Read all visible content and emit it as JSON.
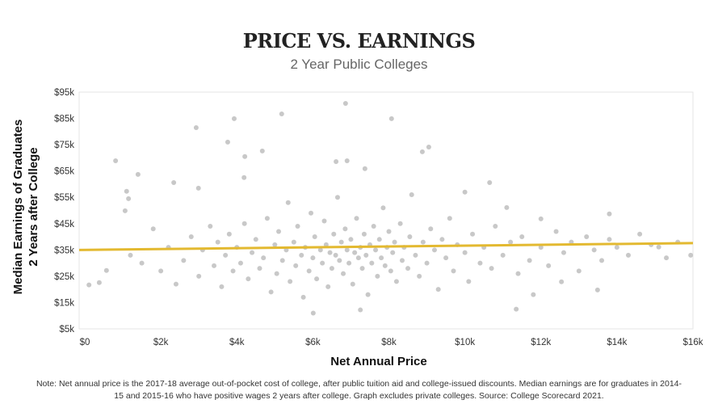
{
  "chart_data": {
    "type": "scatter",
    "title": "PRICE VS. EARNINGS",
    "subtitle": "2 Year Public Colleges",
    "xlabel": "Net Annual Price",
    "ylabel_lines": [
      "Median Earnings of Graduates",
      "2 Years after College"
    ],
    "xlim": [
      0,
      16
    ],
    "ylim": [
      5,
      95
    ],
    "x_ticks": [
      "$0",
      "$2k",
      "$4k",
      "$6k",
      "$8k",
      "$10k",
      "$12k",
      "$14k",
      "$16k"
    ],
    "y_ticks": [
      "$5k",
      "$15k",
      "$25k",
      "$35k",
      "$45k",
      "$55k",
      "$65k",
      "$75k",
      "$85k",
      "$95k"
    ],
    "grid": false,
    "point_color": "#c8c8c8",
    "trend_color": "#e3b930",
    "trendline": {
      "x": [
        0,
        16
      ],
      "y": [
        35.0,
        37.6
      ]
    },
    "points_units": "[net price $k, earnings $k]",
    "points": [
      [
        2.93,
        81.5
      ],
      [
        3.93,
        84.9
      ],
      [
        5.18,
        86.7
      ],
      [
        6.86,
        90.7
      ],
      [
        8.07,
        84.9
      ],
      [
        0.81,
        68.9
      ],
      [
        1.4,
        63.7
      ],
      [
        3.76,
        76.0
      ],
      [
        4.21,
        70.5
      ],
      [
        4.67,
        72.6
      ],
      [
        7.37,
        65.9
      ],
      [
        9.05,
        74.1
      ],
      [
        8.88,
        72.3
      ],
      [
        10.65,
        60.6
      ],
      [
        6.61,
        68.6
      ],
      [
        6.9,
        68.9
      ],
      [
        4.19,
        62.5
      ],
      [
        2.34,
        60.6
      ],
      [
        2.99,
        58.5
      ],
      [
        1.1,
        57.3
      ],
      [
        1.15,
        54.5
      ],
      [
        1.06,
        49.9
      ],
      [
        7.25,
        12.2
      ],
      [
        11.35,
        12.5
      ],
      [
        6.01,
        11.0
      ],
      [
        13.49,
        19.8
      ],
      [
        12.54,
        22.9
      ],
      [
        0.11,
        21.7
      ],
      [
        0.38,
        22.6
      ],
      [
        0.57,
        27.2
      ],
      [
        15.94,
        33.0
      ],
      [
        15.1,
        36.1
      ],
      [
        13.8,
        48.7
      ],
      [
        12.0,
        46.8
      ],
      [
        11.1,
        51.1
      ],
      [
        10.0,
        57.0
      ],
      [
        1.2,
        33
      ],
      [
        1.5,
        30
      ],
      [
        1.8,
        43
      ],
      [
        2.0,
        27
      ],
      [
        2.2,
        36
      ],
      [
        2.4,
        22
      ],
      [
        2.6,
        31
      ],
      [
        2.8,
        40
      ],
      [
        3.0,
        25
      ],
      [
        3.1,
        35
      ],
      [
        3.3,
        44
      ],
      [
        3.4,
        29
      ],
      [
        3.5,
        38
      ],
      [
        3.6,
        21
      ],
      [
        3.7,
        33
      ],
      [
        3.8,
        41
      ],
      [
        3.9,
        27
      ],
      [
        4.0,
        36
      ],
      [
        4.1,
        30
      ],
      [
        4.2,
        45
      ],
      [
        4.3,
        24
      ],
      [
        4.4,
        34
      ],
      [
        4.5,
        39
      ],
      [
        4.6,
        28
      ],
      [
        4.7,
        32
      ],
      [
        4.8,
        47
      ],
      [
        4.9,
        19
      ],
      [
        5.0,
        37
      ],
      [
        5.05,
        26
      ],
      [
        5.1,
        42
      ],
      [
        5.2,
        31
      ],
      [
        5.3,
        35
      ],
      [
        5.35,
        53
      ],
      [
        5.4,
        23
      ],
      [
        5.5,
        38
      ],
      [
        5.55,
        29
      ],
      [
        5.6,
        44
      ],
      [
        5.7,
        33
      ],
      [
        5.75,
        17
      ],
      [
        5.8,
        36
      ],
      [
        5.9,
        27
      ],
      [
        5.95,
        49
      ],
      [
        6.0,
        32
      ],
      [
        6.05,
        40
      ],
      [
        6.1,
        24
      ],
      [
        6.2,
        35
      ],
      [
        6.25,
        30
      ],
      [
        6.3,
        46
      ],
      [
        6.35,
        37
      ],
      [
        6.4,
        21
      ],
      [
        6.45,
        34
      ],
      [
        6.5,
        28
      ],
      [
        6.55,
        41
      ],
      [
        6.6,
        33
      ],
      [
        6.65,
        55
      ],
      [
        6.7,
        31
      ],
      [
        6.75,
        38
      ],
      [
        6.8,
        26
      ],
      [
        6.85,
        43
      ],
      [
        6.9,
        35
      ],
      [
        6.95,
        30
      ],
      [
        7.0,
        39
      ],
      [
        7.05,
        22
      ],
      [
        7.1,
        34
      ],
      [
        7.15,
        47
      ],
      [
        7.2,
        32
      ],
      [
        7.25,
        36
      ],
      [
        7.3,
        28
      ],
      [
        7.35,
        41
      ],
      [
        7.4,
        33
      ],
      [
        7.45,
        18
      ],
      [
        7.5,
        37
      ],
      [
        7.55,
        30
      ],
      [
        7.6,
        44
      ],
      [
        7.65,
        35
      ],
      [
        7.7,
        25
      ],
      [
        7.75,
        39
      ],
      [
        7.8,
        32
      ],
      [
        7.85,
        51
      ],
      [
        7.9,
        29
      ],
      [
        7.95,
        36
      ],
      [
        8.0,
        42
      ],
      [
        8.05,
        27
      ],
      [
        8.1,
        34
      ],
      [
        8.15,
        38
      ],
      [
        8.2,
        23
      ],
      [
        8.3,
        45
      ],
      [
        8.35,
        31
      ],
      [
        8.4,
        36
      ],
      [
        8.5,
        28
      ],
      [
        8.55,
        40
      ],
      [
        8.6,
        56
      ],
      [
        8.7,
        33
      ],
      [
        8.8,
        25
      ],
      [
        8.9,
        38
      ],
      [
        9.0,
        30
      ],
      [
        9.1,
        43
      ],
      [
        9.2,
        35
      ],
      [
        9.3,
        20
      ],
      [
        9.4,
        39
      ],
      [
        9.5,
        32
      ],
      [
        9.6,
        47
      ],
      [
        9.7,
        27
      ],
      [
        9.8,
        37
      ],
      [
        10.0,
        34
      ],
      [
        10.1,
        23
      ],
      [
        10.2,
        41
      ],
      [
        10.4,
        30
      ],
      [
        10.5,
        36
      ],
      [
        10.7,
        28
      ],
      [
        10.8,
        44
      ],
      [
        11.0,
        33
      ],
      [
        11.2,
        38
      ],
      [
        11.4,
        26
      ],
      [
        11.5,
        40
      ],
      [
        11.7,
        31
      ],
      [
        11.8,
        18
      ],
      [
        12.0,
        36
      ],
      [
        12.2,
        29
      ],
      [
        12.4,
        42
      ],
      [
        12.6,
        34
      ],
      [
        12.8,
        38
      ],
      [
        13.0,
        27
      ],
      [
        13.2,
        40
      ],
      [
        13.4,
        35
      ],
      [
        13.6,
        31
      ],
      [
        13.8,
        39
      ],
      [
        14.0,
        36
      ],
      [
        14.3,
        33
      ],
      [
        14.6,
        41
      ],
      [
        14.9,
        37
      ],
      [
        15.3,
        32
      ],
      [
        15.6,
        38
      ]
    ]
  },
  "note": "Note: Net annual price is the 2017-18 average out-of-pocket cost of college, after public tuition aid and college-issued discounts. Median earnings are for graduates in 2014-15 and 2015-16 who have positive wages 2 years after college. Graph excludes private colleges. Source: College Scorecard 2021."
}
